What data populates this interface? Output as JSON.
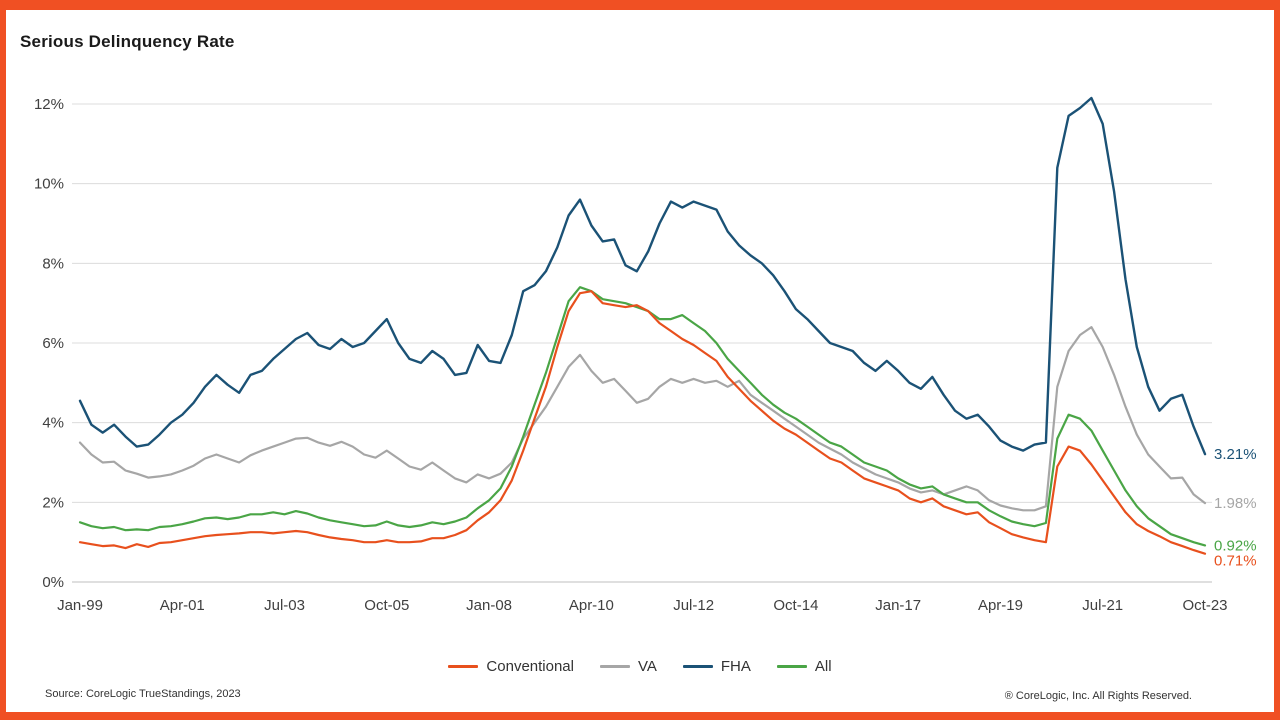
{
  "page": {
    "title": "Serious Delinquency Rate",
    "source": "Source: CoreLogic TrueStandings, 2023",
    "copyright": "® CoreLogic, Inc. All Rights Reserved.",
    "accent_color": "#F05023"
  },
  "legend": [
    {
      "label": "Conventional",
      "color": "#E8501D"
    },
    {
      "label": "VA",
      "color": "#A6A6A6"
    },
    {
      "label": "FHA",
      "color": "#1B5276"
    },
    {
      "label": "All",
      "color": "#4AA546"
    }
  ],
  "chart_data": {
    "type": "line",
    "title": "Serious Delinquency Rate",
    "x_frequency": "quarterly",
    "x_start": "Jan-99",
    "x_end": "Oct-23",
    "points": 100,
    "x_tick_labels": [
      "Jan-99",
      "Apr-01",
      "Jul-03",
      "Oct-05",
      "Jan-08",
      "Apr-10",
      "Jul-12",
      "Oct-14",
      "Jan-17",
      "Apr-19",
      "Jul-21",
      "Oct-23"
    ],
    "x_tick_indices": [
      0,
      9,
      18,
      27,
      36,
      45,
      54,
      63,
      72,
      81,
      90,
      99
    ],
    "ylim": [
      0,
      12
    ],
    "y_ticks": [
      "0%",
      "2%",
      "4%",
      "6%",
      "8%",
      "10%",
      "12%"
    ],
    "grid": "horizontal",
    "legend_position": "bottom",
    "series": [
      {
        "name": "VA",
        "color": "#A6A6A6",
        "end_label": "1.98%",
        "values": [
          3.5,
          3.2,
          3.0,
          3.02,
          2.8,
          2.72,
          2.62,
          2.65,
          2.7,
          2.8,
          2.92,
          3.1,
          3.2,
          3.1,
          3.0,
          3.18,
          3.3,
          3.4,
          3.5,
          3.6,
          3.62,
          3.5,
          3.42,
          3.52,
          3.4,
          3.2,
          3.12,
          3.3,
          3.1,
          2.9,
          2.82,
          3.0,
          2.8,
          2.6,
          2.5,
          2.7,
          2.6,
          2.72,
          3.0,
          3.6,
          4.0,
          4.4,
          4.9,
          5.4,
          5.7,
          5.3,
          5.0,
          5.1,
          4.8,
          4.5,
          4.6,
          4.9,
          5.1,
          5.0,
          5.1,
          5.0,
          5.05,
          4.9,
          5.05,
          4.7,
          4.5,
          4.3,
          4.1,
          3.9,
          3.7,
          3.5,
          3.35,
          3.2,
          3.0,
          2.85,
          2.7,
          2.6,
          2.5,
          2.35,
          2.25,
          2.3,
          2.2,
          2.3,
          2.4,
          2.3,
          2.05,
          1.92,
          1.85,
          1.8,
          1.8,
          1.9,
          4.9,
          5.8,
          6.2,
          6.4,
          5.9,
          5.2,
          4.4,
          3.7,
          3.2,
          2.9,
          2.6,
          2.62,
          2.2,
          1.98
        ]
      },
      {
        "name": "All",
        "color": "#4AA546",
        "end_label": "0.92%",
        "values": [
          1.5,
          1.4,
          1.35,
          1.38,
          1.3,
          1.32,
          1.3,
          1.38,
          1.4,
          1.45,
          1.52,
          1.6,
          1.62,
          1.58,
          1.62,
          1.7,
          1.7,
          1.75,
          1.7,
          1.78,
          1.72,
          1.62,
          1.55,
          1.5,
          1.45,
          1.4,
          1.42,
          1.52,
          1.42,
          1.38,
          1.42,
          1.5,
          1.45,
          1.52,
          1.62,
          1.85,
          2.05,
          2.35,
          2.9,
          3.65,
          4.45,
          5.25,
          6.15,
          7.05,
          7.4,
          7.3,
          7.1,
          7.05,
          7.0,
          6.9,
          6.8,
          6.6,
          6.6,
          6.7,
          6.5,
          6.3,
          6.0,
          5.6,
          5.3,
          5.0,
          4.7,
          4.45,
          4.25,
          4.1,
          3.9,
          3.7,
          3.5,
          3.4,
          3.2,
          3.0,
          2.9,
          2.8,
          2.6,
          2.45,
          2.35,
          2.4,
          2.2,
          2.1,
          2.0,
          2.0,
          1.8,
          1.65,
          1.52,
          1.45,
          1.4,
          1.48,
          3.6,
          4.2,
          4.1,
          3.8,
          3.3,
          2.8,
          2.3,
          1.9,
          1.6,
          1.4,
          1.2,
          1.1,
          1.0,
          0.92
        ]
      },
      {
        "name": "Conventional",
        "color": "#E8501D",
        "end_label": "0.71%",
        "values": [
          1.0,
          0.95,
          0.9,
          0.92,
          0.85,
          0.95,
          0.88,
          0.98,
          1.0,
          1.05,
          1.1,
          1.15,
          1.18,
          1.2,
          1.22,
          1.25,
          1.25,
          1.22,
          1.25,
          1.28,
          1.25,
          1.18,
          1.12,
          1.08,
          1.05,
          1.0,
          1.0,
          1.05,
          1.0,
          1.0,
          1.02,
          1.1,
          1.1,
          1.18,
          1.3,
          1.55,
          1.75,
          2.05,
          2.55,
          3.3,
          4.1,
          4.9,
          5.9,
          6.8,
          7.25,
          7.3,
          7.0,
          6.95,
          6.9,
          6.95,
          6.8,
          6.5,
          6.3,
          6.1,
          5.95,
          5.75,
          5.55,
          5.15,
          4.85,
          4.55,
          4.3,
          4.05,
          3.85,
          3.7,
          3.5,
          3.3,
          3.1,
          3.0,
          2.8,
          2.6,
          2.5,
          2.4,
          2.3,
          2.1,
          2.0,
          2.1,
          1.9,
          1.8,
          1.7,
          1.75,
          1.5,
          1.35,
          1.2,
          1.12,
          1.05,
          1.0,
          2.9,
          3.4,
          3.3,
          2.95,
          2.55,
          2.15,
          1.75,
          1.45,
          1.28,
          1.15,
          1.0,
          0.9,
          0.8,
          0.71
        ]
      },
      {
        "name": "FHA",
        "color": "#1B5276",
        "end_label": "3.21%",
        "values": [
          4.55,
          3.95,
          3.75,
          3.95,
          3.65,
          3.4,
          3.45,
          3.7,
          4.0,
          4.2,
          4.5,
          4.9,
          5.2,
          4.95,
          4.75,
          5.2,
          5.3,
          5.6,
          5.85,
          6.1,
          6.25,
          5.95,
          5.85,
          6.1,
          5.9,
          6.0,
          6.3,
          6.6,
          6.0,
          5.6,
          5.5,
          5.8,
          5.6,
          5.2,
          5.25,
          5.95,
          5.55,
          5.5,
          6.2,
          7.3,
          7.45,
          7.8,
          8.4,
          9.2,
          9.6,
          8.95,
          8.55,
          8.6,
          7.95,
          7.8,
          8.3,
          9.0,
          9.55,
          9.4,
          9.55,
          9.45,
          9.35,
          8.8,
          8.45,
          8.2,
          8.0,
          7.7,
          7.3,
          6.85,
          6.6,
          6.3,
          6.0,
          5.9,
          5.8,
          5.5,
          5.3,
          5.55,
          5.3,
          5.0,
          4.85,
          5.15,
          4.7,
          4.3,
          4.1,
          4.2,
          3.9,
          3.55,
          3.4,
          3.3,
          3.45,
          3.5,
          10.4,
          11.7,
          11.9,
          12.15,
          11.5,
          9.8,
          7.6,
          5.9,
          4.9,
          4.3,
          4.6,
          4.7,
          3.9,
          3.21
        ]
      }
    ]
  }
}
